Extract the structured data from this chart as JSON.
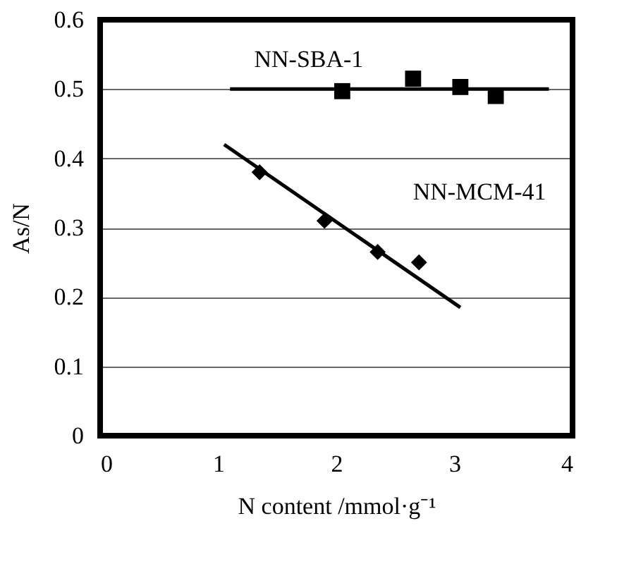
{
  "chart_data": {
    "type": "scatter",
    "xlabel": "N content /mmol·g⁻¹",
    "ylabel": "As/N",
    "xlim": [
      0,
      4
    ],
    "xticks": [
      0,
      1,
      2,
      3,
      4
    ],
    "ylim": [
      0,
      0.6
    ],
    "yticks": [
      0,
      0.1,
      0.2,
      0.3,
      0.4,
      0.5,
      0.6
    ],
    "grid": "y",
    "series": [
      {
        "name": "NN-SBA-1",
        "marker": "square",
        "color": "#000000",
        "x": [
          2.05,
          2.65,
          3.05,
          3.35
        ],
        "values": [
          0.497,
          0.515,
          0.503,
          0.49
        ]
      },
      {
        "type": "line",
        "marker": "none",
        "color": "#000000",
        "x": [
          1.1,
          3.8
        ],
        "values": [
          0.5,
          0.5
        ]
      },
      {
        "name": "NN-MCM-41",
        "marker": "diamond",
        "color": "#000000",
        "x": [
          1.35,
          1.9,
          2.35,
          2.7
        ],
        "values": [
          0.38,
          0.31,
          0.265,
          0.25
        ]
      },
      {
        "type": "line",
        "marker": "none",
        "color": "#000000",
        "x": [
          1.05,
          3.05
        ],
        "values": [
          0.42,
          0.185
        ]
      }
    ]
  }
}
